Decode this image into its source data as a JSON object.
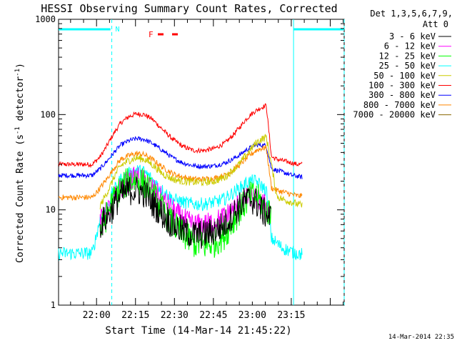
{
  "chart_data": {
    "type": "line",
    "title": "HESSI Observing Summary Count Rates, Corrected",
    "xlabel": "Start Time (14-Mar-14 21:45:22)",
    "ylabel_main": "Corrected Count Rate (s",
    "ylabel_sup1": "-1",
    "ylabel_mid": " detector",
    "ylabel_sup2": "-1",
    "ylabel_end": ")",
    "y_scale": "log",
    "ylim": [
      1,
      1000
    ],
    "y_ticks": [
      {
        "value": 1,
        "label": "1"
      },
      {
        "value": 10,
        "label": "10"
      },
      {
        "value": 100,
        "label": "100"
      },
      {
        "value": 1000,
        "label": "1000"
      }
    ],
    "x_minutes_start": 0,
    "x_minutes_end": 110,
    "x_ticks": [
      {
        "minutes": 14.63,
        "label": "22:00"
      },
      {
        "minutes": 29.63,
        "label": "22:15"
      },
      {
        "minutes": 44.63,
        "label": "22:30"
      },
      {
        "minutes": 59.63,
        "label": "22:45"
      },
      {
        "minutes": 74.63,
        "label": "23:00"
      },
      {
        "minutes": 89.63,
        "label": "23:15"
      }
    ],
    "grid": false,
    "legend_position": "right",
    "legend_header_1": "Det 1,3,5,6,7,9,",
    "legend_header_2": "Att 0",
    "series": [
      {
        "name": "3 - 6 keV",
        "color": "#000000",
        "x": [
          0,
          13,
          16,
          18,
          20,
          22,
          24,
          27,
          30,
          33,
          36,
          40,
          44,
          48,
          52,
          56,
          60,
          64,
          67,
          70,
          72,
          74,
          76,
          78,
          80,
          82,
          84,
          86,
          88,
          90,
          92,
          94
        ],
        "values": [
          null,
          null,
          7.0,
          8,
          9.5,
          12,
          14,
          16,
          16,
          15,
          12,
          9,
          7,
          6,
          5.5,
          5.5,
          6,
          7,
          9,
          11,
          12.5,
          13,
          12,
          10,
          9,
          8,
          null,
          null,
          null,
          null,
          null,
          null
        ]
      },
      {
        "name": "6 - 12 keV",
        "color": "#ff00ff",
        "x": [
          0,
          13,
          16,
          18,
          20,
          22,
          24,
          27,
          30,
          33,
          36,
          40,
          44,
          48,
          52,
          56,
          60,
          64,
          67,
          70,
          72,
          74,
          76,
          78,
          80,
          82,
          84,
          86,
          88,
          90,
          92,
          94
        ],
        "values": [
          null,
          null,
          7.5,
          9,
          11,
          14,
          17,
          20,
          22,
          20,
          17,
          13,
          10,
          8,
          7,
          7,
          7.5,
          8.5,
          10,
          12,
          13,
          14,
          13,
          12,
          11,
          10,
          null,
          null,
          null,
          null,
          null,
          null
        ]
      },
      {
        "name": "12 - 25 keV",
        "color": "#00ff00",
        "x": [
          0,
          13,
          16,
          18,
          20,
          22,
          24,
          27,
          30,
          33,
          36,
          40,
          44,
          48,
          52,
          56,
          60,
          64,
          67,
          70,
          72,
          74,
          76,
          78,
          80,
          82,
          84,
          86,
          88,
          90,
          92,
          94
        ],
        "values": [
          null,
          null,
          6,
          8,
          11,
          14,
          17,
          20,
          21,
          19,
          15,
          10,
          7,
          5.5,
          4.5,
          4.2,
          4.5,
          5.5,
          7.5,
          10,
          12,
          14,
          14,
          12,
          10,
          9,
          null,
          null,
          null,
          null,
          null,
          null
        ]
      },
      {
        "name": "25 - 50 keV",
        "color": "#00ffff",
        "x": [
          0,
          13,
          16,
          18,
          20,
          22,
          24,
          27,
          30,
          33,
          36,
          40,
          44,
          48,
          52,
          56,
          60,
          64,
          67,
          70,
          72,
          74,
          76,
          78,
          80,
          82,
          84,
          86,
          88,
          90,
          92,
          94
        ],
        "values": [
          3.5,
          3.5,
          8,
          10,
          13,
          17,
          21,
          24,
          26,
          25,
          21,
          16,
          13,
          12,
          11.5,
          11.5,
          12,
          13,
          15,
          17,
          19,
          20,
          20,
          18,
          16,
          5,
          4.5,
          4,
          3.8,
          3.6,
          3.5,
          3.4
        ]
      },
      {
        "name": "50 - 100 keV",
        "color": "#cccc00",
        "x": [
          0,
          13,
          16,
          18,
          20,
          22,
          24,
          27,
          30,
          33,
          36,
          40,
          44,
          48,
          52,
          56,
          60,
          64,
          67,
          70,
          72,
          74,
          76,
          78,
          80,
          82,
          84,
          86,
          88,
          90,
          92,
          94
        ],
        "values": [
          null,
          null,
          11,
          14,
          18,
          24,
          29,
          33,
          35,
          34,
          30,
          24,
          21,
          20,
          19.5,
          19.5,
          20,
          22,
          26,
          31,
          37,
          43,
          50,
          55,
          58,
          30,
          14,
          13,
          12.5,
          12,
          11.5,
          11
        ]
      },
      {
        "name": "100 - 300 keV",
        "color": "#ff0000",
        "x": [
          0,
          13,
          16,
          18,
          20,
          22,
          24,
          27,
          30,
          33,
          36,
          40,
          44,
          48,
          52,
          56,
          60,
          64,
          67,
          70,
          72,
          74,
          76,
          78,
          80,
          82,
          84,
          86,
          88,
          90,
          92,
          94
        ],
        "values": [
          30,
          30,
          36,
          44,
          55,
          68,
          82,
          95,
          102,
          100,
          90,
          70,
          55,
          46,
          42,
          42,
          44,
          50,
          60,
          75,
          88,
          100,
          110,
          118,
          125,
          36,
          34,
          33,
          32,
          31,
          30,
          30
        ]
      },
      {
        "name": "300 - 800 keV",
        "color": "#0000ff",
        "x": [
          0,
          13,
          16,
          18,
          20,
          22,
          24,
          27,
          30,
          33,
          36,
          40,
          44,
          48,
          52,
          56,
          60,
          64,
          67,
          70,
          72,
          74,
          76,
          78,
          80,
          82,
          84,
          86,
          88,
          90,
          92,
          94
        ],
        "values": [
          23,
          23,
          27,
          31,
          36,
          42,
          48,
          53,
          56,
          55,
          50,
          42,
          35,
          31,
          29,
          28.5,
          29,
          31,
          34,
          38,
          42,
          45,
          48,
          48,
          47,
          27,
          26,
          25,
          24,
          23,
          22.5,
          22
        ]
      },
      {
        "name": "800 - 7000 keV",
        "color": "#ff8800",
        "x": [
          0,
          13,
          16,
          18,
          20,
          22,
          24,
          27,
          30,
          33,
          36,
          40,
          44,
          48,
          52,
          56,
          60,
          64,
          67,
          70,
          72,
          74,
          76,
          78,
          80,
          82,
          84,
          86,
          88,
          90,
          92,
          94
        ],
        "values": [
          13.5,
          13.5,
          17,
          20,
          24,
          29,
          34,
          37,
          39,
          38,
          34,
          28,
          24,
          22,
          21,
          21,
          21.5,
          23,
          26,
          30,
          34,
          38,
          42,
          44,
          45,
          17,
          16,
          15.5,
          15,
          14.5,
          14,
          14
        ]
      },
      {
        "name": "7000 - 20000 keV",
        "color": "#886600",
        "x": [],
        "values": []
      }
    ],
    "annotations": {
      "n_label": "N",
      "f_label": "F",
      "footer_date": "14-Mar-2014 22:35"
    }
  }
}
